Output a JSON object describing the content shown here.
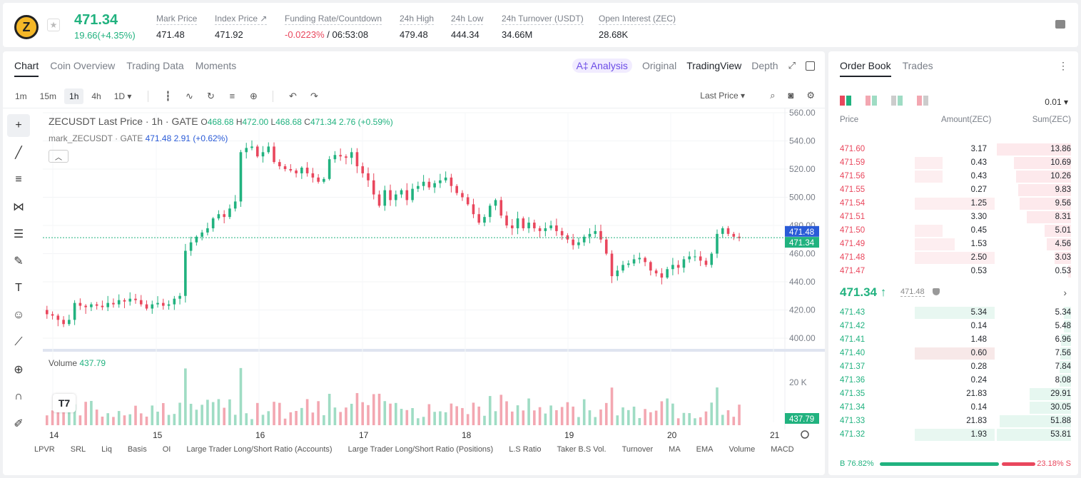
{
  "ticker": {
    "symbol_icon": "zec-coin-icon",
    "logo_letter": "Z",
    "last_price": "471.34",
    "change": "19.66(+4.35%)",
    "stats": [
      {
        "label": "Mark Price",
        "value": "471.48"
      },
      {
        "label": "Index Price ↗",
        "value": "471.92"
      },
      {
        "label": "Funding Rate/Countdown",
        "value_neg": "-0.0223%",
        "value": " / 06:53:08"
      },
      {
        "label": "24h High",
        "value": "479.48"
      },
      {
        "label": "24h Low",
        "value": "444.34"
      },
      {
        "label": "24h Turnover (USDT)",
        "value": "34.66M"
      },
      {
        "label": "Open Interest (ZEC)",
        "value": "28.68K"
      }
    ]
  },
  "chart_tabs": [
    "Chart",
    "Coin Overview",
    "Trading Data",
    "Moments"
  ],
  "view_tabs": {
    "analysis": "A‡ Analysis",
    "original": "Original",
    "tradingview": "TradingView",
    "depth": "Depth"
  },
  "timeframes": [
    "1m",
    "15m",
    "1h",
    "4h",
    "1D ▾"
  ],
  "price_type": "Last Price ▾",
  "legend": {
    "pair": "ZECUSDT Last Price · 1h · GATE",
    "o_label": "O",
    "o": "468.68",
    "h_label": "H",
    "h": "472.00",
    "l_label": "L",
    "l": "468.68",
    "c_label": "C",
    "c": "471.34",
    "chg": "2.76 (+0.59%)",
    "mark_name": "mark_ZECUSDT · GATE",
    "mark_val": "471.48",
    "mark_chg": "2.91 (+0.62%)"
  },
  "volume": {
    "label": "Volume",
    "value": "437.79"
  },
  "tv_logo": "T7",
  "indicators": [
    "LPVR",
    "SRL",
    "Liq",
    "Basis",
    "OI",
    "Large Trader Long/Short Ratio (Accounts)",
    "Large Trader Long/Short Ratio (Positions)",
    "L.S Ratio",
    "Taker B.S Vol.",
    "Turnover",
    "MA",
    "EMA",
    "Volume",
    "MACD"
  ],
  "chart_data": {
    "type": "candlestick",
    "y_ticks": [
      "560.00",
      "540.00",
      "520.00",
      "500.00",
      "480.00",
      "460.00",
      "440.00",
      "420.00",
      "400.00"
    ],
    "ylim": [
      400,
      560
    ],
    "x_ticks": [
      "14",
      "15",
      "16",
      "17",
      "18",
      "19",
      "20",
      "21"
    ],
    "mark_price_label": "471.48",
    "last_price_label": "471.34",
    "volume_tick": "20 K",
    "volume_last_label": "437.79",
    "volume_ylim": [
      0,
      20000
    ],
    "closes": [
      417,
      416,
      413,
      410,
      413,
      425,
      423,
      422,
      424,
      423,
      422,
      425,
      424,
      427,
      426,
      428,
      427,
      424,
      421,
      424,
      425,
      423,
      424,
      428,
      430,
      462,
      468,
      472,
      475,
      478,
      485,
      488,
      486,
      492,
      497,
      532,
      535,
      536,
      529,
      532,
      536,
      525,
      522,
      520,
      519,
      517,
      521,
      517,
      514,
      511,
      513,
      527,
      530,
      529,
      528,
      532,
      522,
      517,
      512,
      502,
      494,
      505,
      498,
      502,
      505,
      498,
      506,
      508,
      511,
      507,
      510,
      512,
      514,
      508,
      503,
      500,
      495,
      488,
      482,
      486,
      494,
      498,
      487,
      480,
      478,
      485,
      478,
      482,
      478,
      476,
      478,
      480,
      476,
      473,
      470,
      466,
      468,
      472,
      474,
      476,
      470,
      460,
      444,
      448,
      452,
      453,
      456,
      457,
      454,
      448,
      446,
      443,
      449,
      452,
      450,
      456,
      458,
      458,
      455,
      452,
      460,
      474,
      478,
      474,
      472,
      471
    ]
  },
  "orderbook": {
    "tabs": [
      "Order Book",
      "Trades"
    ],
    "precision": "0.01 ▾",
    "headers": {
      "price": "Price",
      "amount": "Amount(ZEC)",
      "sum": "Sum(ZEC)"
    },
    "asks": [
      {
        "price": "471.60",
        "amount": "3.17",
        "sum": "13.86",
        "amt_frac": 0,
        "sum_frac": 1.0
      },
      {
        "price": "471.59",
        "amount": "0.43",
        "sum": "10.69",
        "amt_frac": 0.14,
        "sum_frac": 0.77
      },
      {
        "price": "471.56",
        "amount": "0.43",
        "sum": "10.26",
        "amt_frac": 0.14,
        "sum_frac": 0.74
      },
      {
        "price": "471.55",
        "amount": "0.27",
        "sum": "9.83",
        "amt_frac": 0,
        "sum_frac": 0.71
      },
      {
        "price": "471.54",
        "amount": "1.25",
        "sum": "9.56",
        "amt_frac": 0.4,
        "sum_frac": 0.69
      },
      {
        "price": "471.51",
        "amount": "3.30",
        "sum": "8.31",
        "amt_frac": 0,
        "sum_frac": 0.6
      },
      {
        "price": "471.50",
        "amount": "0.45",
        "sum": "5.01",
        "amt_frac": 0.14,
        "sum_frac": 0.36
      },
      {
        "price": "471.49",
        "amount": "1.53",
        "sum": "4.56",
        "amt_frac": 0.2,
        "sum_frac": 0.33
      },
      {
        "price": "471.48",
        "amount": "2.50",
        "sum": "3.03",
        "amt_frac": 0.4,
        "sum_frac": 0.22
      },
      {
        "price": "471.47",
        "amount": "0.53",
        "sum": "0.53",
        "amt_frac": 0,
        "sum_frac": 0.04
      }
    ],
    "mid": {
      "price": "471.34 ↑",
      "mark": "471.48"
    },
    "bids": [
      {
        "price": "471.43",
        "amount": "5.34",
        "sum": "5.34",
        "amt_frac": 0.4,
        "sum_frac": 0.1
      },
      {
        "price": "471.42",
        "amount": "0.14",
        "sum": "5.48",
        "amt_frac": 0,
        "sum_frac": 0.1
      },
      {
        "price": "471.41",
        "amount": "1.48",
        "sum": "6.96",
        "amt_frac": 0,
        "sum_frac": 0.13
      },
      {
        "price": "471.40",
        "amount": "0.60",
        "sum": "7.56",
        "amt_frac": 0.4,
        "sum_frac": 0.14
      },
      {
        "price": "471.37",
        "amount": "0.28",
        "sum": "7.84",
        "amt_frac": 0,
        "sum_frac": 0.15
      },
      {
        "price": "471.36",
        "amount": "0.24",
        "sum": "8.08",
        "amt_frac": 0,
        "sum_frac": 0.15
      },
      {
        "price": "471.35",
        "amount": "21.83",
        "sum": "29.91",
        "amt_frac": 0,
        "sum_frac": 0.56
      },
      {
        "price": "471.34",
        "amount": "0.14",
        "sum": "30.05",
        "amt_frac": 0,
        "sum_frac": 0.56
      },
      {
        "price": "471.33",
        "amount": "21.83",
        "sum": "51.88",
        "amt_frac": 0,
        "sum_frac": 0.96
      },
      {
        "price": "471.32",
        "amount": "1.93",
        "sum": "53.81",
        "amt_frac": 0.4,
        "sum_frac": 1.0
      }
    ],
    "buy_ratio": "B 76.82%",
    "sell_ratio": "23.18% S",
    "buy_frac": 0.7682
  },
  "colors": {
    "up": "#21b27f",
    "down": "#e9475d",
    "mark_label": "#2a5bd7"
  }
}
